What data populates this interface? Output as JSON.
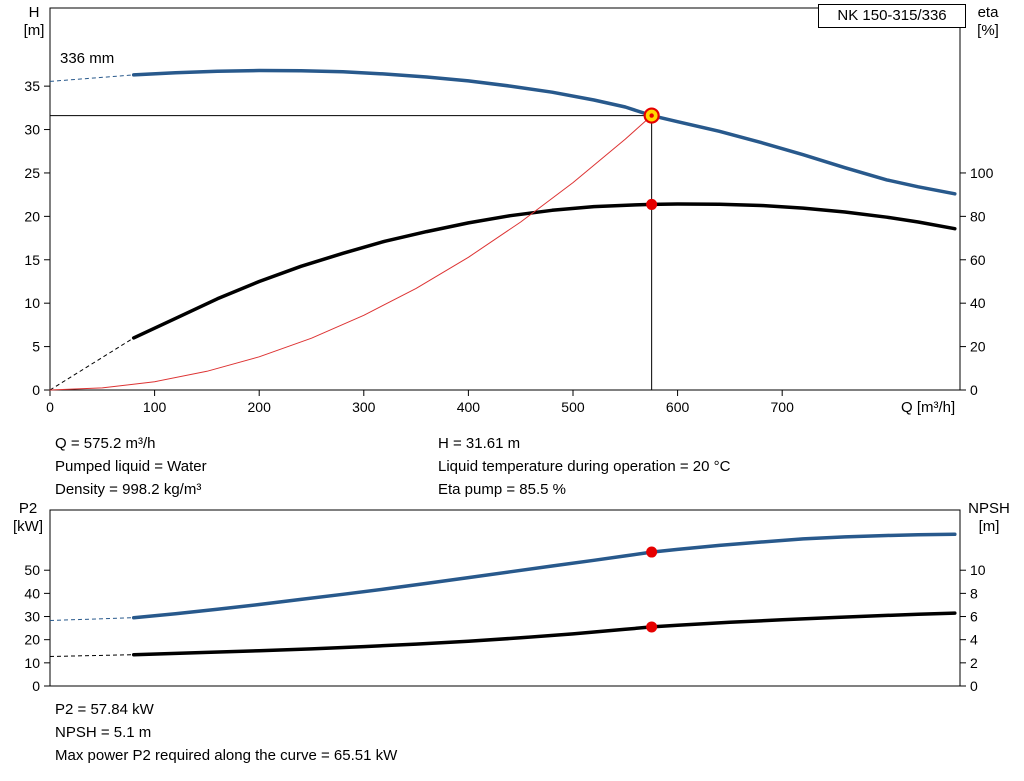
{
  "header": {
    "model": "NK 150-315/336"
  },
  "labels": {
    "h_line1": "H",
    "h_line2": "[m]",
    "eta_line1": "eta",
    "eta_line2": "[%]",
    "q_axis": "Q [m³/h]",
    "p2_line1": "P2",
    "p2_line2": "[kW]",
    "npsh_line1": "NPSH",
    "npsh_line2": "[m]"
  },
  "annotations": {
    "impeller": "336 mm"
  },
  "operating_point_info": {
    "left": [
      "Q = 575.2 m³/h",
      "Pumped liquid = Water",
      "Density = 998.2 kg/m³"
    ],
    "right": [
      "H = 31.61 m",
      "Liquid temperature during operation = 20 °C",
      "Eta pump = 85.5 %"
    ]
  },
  "power_info": [
    "P2 = 57.84 kW",
    "NPSH = 5.1 m",
    "Max power P2 required along the curve = 65.51 kW"
  ],
  "colors": {
    "curve_blue": "#28598c",
    "curve_black": "#000000",
    "curve_red": "#dd3333",
    "marker_red": "#e60000",
    "duty_fill": "#ffd500"
  },
  "chart_data": [
    {
      "type": "line",
      "name": "qh-efficiency-chart",
      "x_axis": {
        "label": "Q [m³/h]",
        "min": 0,
        "max": 870,
        "ticks": [
          0,
          100,
          200,
          300,
          400,
          500,
          600,
          700
        ],
        "show_ticks": true,
        "show_tick_labels": true
      },
      "y_left": {
        "label": "H [m]",
        "min": 0,
        "max": 44,
        "ticks": [
          0,
          5,
          10,
          15,
          20,
          25,
          30,
          35
        ]
      },
      "y_right": {
        "label": "eta [%]",
        "min": 0,
        "max": 176,
        "ticks": [
          0,
          20,
          40,
          60,
          80,
          100
        ]
      },
      "duty_point": {
        "Q": 575.2,
        "H": 31.61,
        "eta": 85.5,
        "impeller": "336 mm"
      },
      "guides": [
        {
          "type": "h",
          "value": 31.61,
          "to": 575.2
        },
        {
          "type": "v",
          "at": 575.2,
          "from": 31.61
        }
      ],
      "series": [
        {
          "name": "head-curve",
          "axis": "left",
          "color": "#28598c",
          "width": 3.5,
          "dash_lead": [
            [
              0,
              35.55
            ],
            [
              80,
              36.3
            ]
          ],
          "points": [
            [
              80,
              36.3
            ],
            [
              120,
              36.55
            ],
            [
              160,
              36.72
            ],
            [
              200,
              36.8
            ],
            [
              240,
              36.78
            ],
            [
              280,
              36.65
            ],
            [
              320,
              36.4
            ],
            [
              360,
              36.05
            ],
            [
              400,
              35.6
            ],
            [
              440,
              35.0
            ],
            [
              480,
              34.3
            ],
            [
              520,
              33.4
            ],
            [
              550,
              32.6
            ],
            [
              575.2,
              31.61
            ],
            [
              600,
              30.9
            ],
            [
              640,
              29.8
            ],
            [
              680,
              28.5
            ],
            [
              720,
              27.1
            ],
            [
              760,
              25.6
            ],
            [
              800,
              24.2
            ],
            [
              830,
              23.4
            ],
            [
              865,
              22.6
            ]
          ]
        },
        {
          "name": "efficiency-curve",
          "axis": "right",
          "color": "#000000",
          "width": 3.5,
          "dash_lead": [
            [
              0,
              0
            ],
            [
              80,
              24
            ]
          ],
          "points": [
            [
              80,
              24
            ],
            [
              120,
              33
            ],
            [
              160,
              42
            ],
            [
              200,
              50
            ],
            [
              240,
              57
            ],
            [
              280,
              63
            ],
            [
              320,
              68.5
            ],
            [
              360,
              73
            ],
            [
              400,
              77
            ],
            [
              440,
              80.3
            ],
            [
              480,
              82.8
            ],
            [
              520,
              84.5
            ],
            [
              560,
              85.3
            ],
            [
              575.2,
              85.5
            ],
            [
              600,
              85.7
            ],
            [
              640,
              85.6
            ],
            [
              680,
              85.0
            ],
            [
              720,
              83.8
            ],
            [
              760,
              82.0
            ],
            [
              800,
              79.6
            ],
            [
              830,
              77.4
            ],
            [
              865,
              74.3
            ]
          ]
        },
        {
          "name": "system-curve",
          "axis": "left",
          "color": "#dd3333",
          "width": 1,
          "points": [
            [
              0,
              0
            ],
            [
              50,
              0.24
            ],
            [
              100,
              0.96
            ],
            [
              150,
              2.15
            ],
            [
              200,
              3.82
            ],
            [
              250,
              5.97
            ],
            [
              300,
              8.6
            ],
            [
              350,
              11.7
            ],
            [
              400,
              15.29
            ],
            [
              450,
              19.35
            ],
            [
              500,
              23.89
            ],
            [
              550,
              28.9
            ],
            [
              575.2,
              31.61
            ]
          ]
        }
      ],
      "markers": [
        {
          "name": "duty-point-marker",
          "q": 575.2,
          "value": 31.61,
          "axis": "left",
          "style": "duty",
          "fill": "#ffd500",
          "stroke": "#e60000"
        },
        {
          "name": "efficiency-point-marker",
          "q": 575.2,
          "value": 85.5,
          "axis": "right",
          "style": "dot",
          "color": "#e60000"
        }
      ]
    },
    {
      "type": "line",
      "name": "p2-npsh-chart",
      "x_axis": {
        "label": "",
        "min": 0,
        "max": 870,
        "ticks": [],
        "show_ticks": false,
        "show_tick_labels": false
      },
      "y_left": {
        "label": "P2 [kW]",
        "min": 0,
        "max": 76,
        "ticks": [
          0,
          10,
          20,
          30,
          40,
          50
        ]
      },
      "y_right": {
        "label": "NPSH [m]",
        "min": 0,
        "max": 15.2,
        "ticks": [
          0,
          2,
          4,
          6,
          8,
          10
        ]
      },
      "duty_point": {
        "Q": 575.2,
        "P2": 57.84,
        "NPSH": 5.1,
        "max_P2": 65.51
      },
      "guides": [],
      "series": [
        {
          "name": "p2-curve",
          "axis": "left",
          "color": "#28598c",
          "width": 3.5,
          "dash_lead": [
            [
              0,
              28.3
            ],
            [
              80,
              29.5
            ]
          ],
          "points": [
            [
              80,
              29.5
            ],
            [
              120,
              31.2
            ],
            [
              160,
              33.1
            ],
            [
              200,
              35.2
            ],
            [
              240,
              37.4
            ],
            [
              280,
              39.6
            ],
            [
              320,
              41.9
            ],
            [
              360,
              44.3
            ],
            [
              400,
              46.8
            ],
            [
              440,
              49.3
            ],
            [
              480,
              51.8
            ],
            [
              520,
              54.3
            ],
            [
              550,
              56.2
            ],
            [
              575.2,
              57.84
            ],
            [
              600,
              59.0
            ],
            [
              640,
              60.7
            ],
            [
              680,
              62.2
            ],
            [
              720,
              63.5
            ],
            [
              760,
              64.4
            ],
            [
              800,
              65.0
            ],
            [
              830,
              65.3
            ],
            [
              865,
              65.5
            ]
          ]
        },
        {
          "name": "npsh-curve",
          "axis": "right",
          "color": "#000000",
          "width": 3.5,
          "dash_lead": [
            [
              0,
              2.55
            ],
            [
              80,
              2.7
            ]
          ],
          "points": [
            [
              80,
              2.7
            ],
            [
              150,
              2.9
            ],
            [
              200,
              3.05
            ],
            [
              250,
              3.2
            ],
            [
              300,
              3.4
            ],
            [
              350,
              3.62
            ],
            [
              400,
              3.87
            ],
            [
              450,
              4.16
            ],
            [
              500,
              4.5
            ],
            [
              550,
              4.9
            ],
            [
              575.2,
              5.1
            ],
            [
              600,
              5.25
            ],
            [
              650,
              5.5
            ],
            [
              700,
              5.72
            ],
            [
              750,
              5.92
            ],
            [
              800,
              6.1
            ],
            [
              830,
              6.2
            ],
            [
              865,
              6.3
            ]
          ]
        }
      ],
      "markers": [
        {
          "name": "p2-point-marker",
          "q": 575.2,
          "value": 57.84,
          "axis": "left",
          "style": "dot",
          "color": "#e60000"
        },
        {
          "name": "npsh-point-marker",
          "q": 575.2,
          "value": 5.1,
          "axis": "right",
          "style": "dot",
          "color": "#e60000"
        }
      ]
    }
  ]
}
